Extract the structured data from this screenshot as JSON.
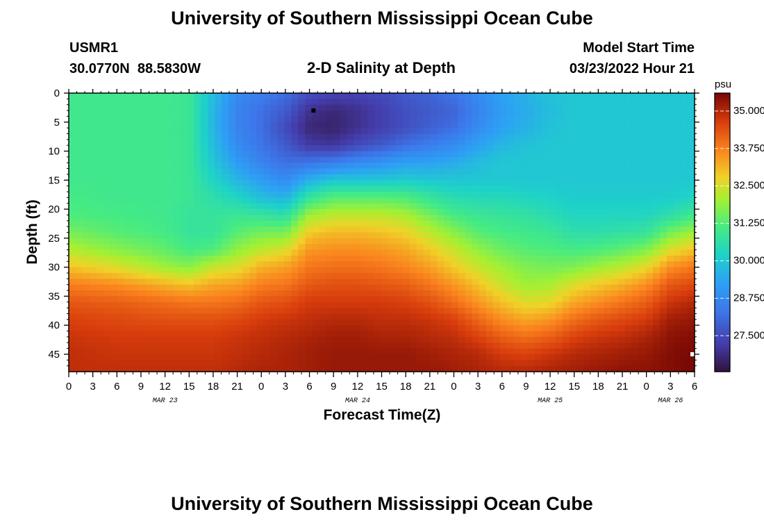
{
  "page": {
    "title": "University of Southern Mississippi Ocean Cube",
    "footer_title": "University of Southern Mississippi Ocean Cube",
    "station_id": "USMR1",
    "station_coords": "30.0770N  88.5830W",
    "subtitle": "2-D Salinity at Depth",
    "model_start_label": "Model Start Time",
    "model_start_value": "03/23/2022 Hour 21"
  },
  "chart_data": {
    "type": "heatmap",
    "title": "2-D Salinity at Depth",
    "xlabel": "Forecast Time(Z)",
    "ylabel": "Depth (ft)",
    "x_tick_labels": [
      "0",
      "3",
      "6",
      "9",
      "12",
      "15",
      "18",
      "21",
      "0",
      "3",
      "6",
      "9",
      "12",
      "15",
      "18",
      "21",
      "0",
      "3",
      "6",
      "9",
      "12",
      "15",
      "18",
      "21",
      "0",
      "3",
      "6"
    ],
    "date_labels": [
      {
        "label": "MAR 23",
        "tick_index": 4
      },
      {
        "label": "MAR 24",
        "tick_index": 12
      },
      {
        "label": "MAR 25",
        "tick_index": 20
      },
      {
        "label": "MAR 26",
        "tick_index": 25
      }
    ],
    "x_range_hours": [
      0,
      78
    ],
    "ylim": [
      0,
      48
    ],
    "y_ticks": [
      0,
      5,
      10,
      15,
      20,
      25,
      30,
      35,
      40,
      45
    ],
    "y_inverted": true,
    "colorbar": {
      "unit": "psu",
      "range": [
        26.3,
        35.6
      ],
      "ticks": [
        "35.000",
        "33.750",
        "32.500",
        "31.250",
        "30.000",
        "28.750",
        "27.500"
      ],
      "tick_values": [
        35.0,
        33.75,
        32.5,
        31.25,
        30.0,
        28.75,
        27.5
      ]
    },
    "marker_points": [
      {
        "hours": 30.5,
        "depth_ft": 3,
        "color": "#000000"
      },
      {
        "hours": 78,
        "depth_ft": 45,
        "color": "#ffffff"
      }
    ],
    "profiles_hours": [
      0,
      6,
      12,
      15,
      18,
      21,
      24,
      27,
      30,
      33,
      36,
      39,
      42,
      45,
      48,
      51,
      54,
      57,
      60,
      63,
      66,
      69,
      72,
      75,
      78
    ],
    "profiles_depth_ft": [
      0,
      3,
      6,
      9,
      12,
      15,
      18,
      21,
      24,
      27,
      30,
      33,
      36,
      39,
      42,
      45,
      48
    ],
    "profiles_psu": [
      [
        31.0,
        31.0,
        31.0,
        31.0,
        31.0,
        31.0,
        31.1,
        31.2,
        31.6,
        32.2,
        33.0,
        33.8,
        34.3,
        34.6,
        34.8,
        34.9,
        34.9
      ],
      [
        31.0,
        31.0,
        31.0,
        31.0,
        31.0,
        31.0,
        31.0,
        31.1,
        31.3,
        31.8,
        32.6,
        33.6,
        34.2,
        34.5,
        34.7,
        34.8,
        34.9
      ],
      [
        31.0,
        31.0,
        31.0,
        31.0,
        31.0,
        31.0,
        31.0,
        31.0,
        31.1,
        31.4,
        32.0,
        33.2,
        34.0,
        34.4,
        34.7,
        34.8,
        34.9
      ],
      [
        30.9,
        30.9,
        30.9,
        30.9,
        30.9,
        30.9,
        30.9,
        30.8,
        30.8,
        31.1,
        31.8,
        33.0,
        33.9,
        34.4,
        34.7,
        34.8,
        34.9
      ],
      [
        29.8,
        29.7,
        29.7,
        29.8,
        30.0,
        30.3,
        30.6,
        30.8,
        30.8,
        31.2,
        32.4,
        33.3,
        33.9,
        34.4,
        34.7,
        34.8,
        34.9
      ],
      [
        28.8,
        28.6,
        28.6,
        28.8,
        29.2,
        29.7,
        30.3,
        30.9,
        31.3,
        31.9,
        32.6,
        33.4,
        34.0,
        34.5,
        34.8,
        34.9,
        35.0
      ],
      [
        28.5,
        28.2,
        28.2,
        28.3,
        28.6,
        29.2,
        29.8,
        30.8,
        31.6,
        32.3,
        33.2,
        33.8,
        34.3,
        34.7,
        34.9,
        35.0,
        35.1
      ],
      [
        28.2,
        27.8,
        27.5,
        27.8,
        28.2,
        28.8,
        29.6,
        30.6,
        31.6,
        32.6,
        33.4,
        33.9,
        34.4,
        34.8,
        35.0,
        35.1,
        35.1
      ],
      [
        27.6,
        27.0,
        26.8,
        27.2,
        28.3,
        29.6,
        30.8,
        32.0,
        32.9,
        33.5,
        33.9,
        34.3,
        34.7,
        34.9,
        35.1,
        35.2,
        35.2
      ],
      [
        27.4,
        26.8,
        26.7,
        27.1,
        28.5,
        30.0,
        31.3,
        32.3,
        33.1,
        33.6,
        34.0,
        34.4,
        34.7,
        35.0,
        35.2,
        35.3,
        35.3
      ],
      [
        27.4,
        27.0,
        27.0,
        27.5,
        28.8,
        30.0,
        31.3,
        32.3,
        33.1,
        33.6,
        34.0,
        34.4,
        34.7,
        35.0,
        35.2,
        35.3,
        35.3
      ],
      [
        27.5,
        27.3,
        27.3,
        27.8,
        29.0,
        30.0,
        31.3,
        32.3,
        33.0,
        33.5,
        33.9,
        34.3,
        34.7,
        34.9,
        35.1,
        35.3,
        35.3
      ],
      [
        27.8,
        27.6,
        27.6,
        28.2,
        29.3,
        30.1,
        31.2,
        32.1,
        32.8,
        33.3,
        33.7,
        34.2,
        34.6,
        34.9,
        35.1,
        35.3,
        35.3
      ],
      [
        28.0,
        27.8,
        27.9,
        28.5,
        29.3,
        30.0,
        30.8,
        31.6,
        32.3,
        32.9,
        33.4,
        33.9,
        34.4,
        34.8,
        35.0,
        35.2,
        35.3
      ],
      [
        28.3,
        28.0,
        28.2,
        28.8,
        29.5,
        30.0,
        30.5,
        31.1,
        31.8,
        32.4,
        32.9,
        33.5,
        34.0,
        34.6,
        34.9,
        35.1,
        35.2
      ],
      [
        28.8,
        28.6,
        28.8,
        29.3,
        29.8,
        30.0,
        30.4,
        30.9,
        31.3,
        31.9,
        32.4,
        33.0,
        33.5,
        34.1,
        34.6,
        35.0,
        35.1
      ],
      [
        29.3,
        29.2,
        29.3,
        29.7,
        30.0,
        30.0,
        30.4,
        30.8,
        31.1,
        31.5,
        32.0,
        32.4,
        33.0,
        33.6,
        34.2,
        34.7,
        35.0
      ],
      [
        29.6,
        29.5,
        29.6,
        29.9,
        30.0,
        30.0,
        30.3,
        30.7,
        31.0,
        31.3,
        31.7,
        32.0,
        32.6,
        33.3,
        34.0,
        34.6,
        35.0
      ],
      [
        29.9,
        29.8,
        29.9,
        30.0,
        30.0,
        30.0,
        30.2,
        30.5,
        30.9,
        31.2,
        31.6,
        32.1,
        32.7,
        33.5,
        34.2,
        34.8,
        35.1
      ],
      [
        30.0,
        30.0,
        30.0,
        30.0,
        30.0,
        30.0,
        30.1,
        30.3,
        30.6,
        31.1,
        31.7,
        32.6,
        33.3,
        34.0,
        34.6,
        35.0,
        35.2
      ],
      [
        30.0,
        30.0,
        30.0,
        30.0,
        30.0,
        30.0,
        30.1,
        30.3,
        30.6,
        31.2,
        32.0,
        32.9,
        33.6,
        34.3,
        34.8,
        35.1,
        35.3
      ],
      [
        30.0,
        30.0,
        30.0,
        30.0,
        30.0,
        30.0,
        30.1,
        30.3,
        30.7,
        31.4,
        32.3,
        33.2,
        33.9,
        34.5,
        34.9,
        35.2,
        35.4
      ],
      [
        30.0,
        30.0,
        30.0,
        30.0,
        30.0,
        30.0,
        30.1,
        30.3,
        30.8,
        31.7,
        32.7,
        33.6,
        34.2,
        34.7,
        35.1,
        35.3,
        35.4
      ],
      [
        30.0,
        30.0,
        30.0,
        30.0,
        30.0,
        30.0,
        30.1,
        30.6,
        31.6,
        32.6,
        33.6,
        34.3,
        34.8,
        35.2,
        35.4,
        35.5,
        35.5
      ],
      [
        30.0,
        30.0,
        30.0,
        30.0,
        30.0,
        30.0,
        30.3,
        31.0,
        32.0,
        33.0,
        33.9,
        34.5,
        35.0,
        35.3,
        35.5,
        35.6,
        35.6
      ]
    ]
  }
}
